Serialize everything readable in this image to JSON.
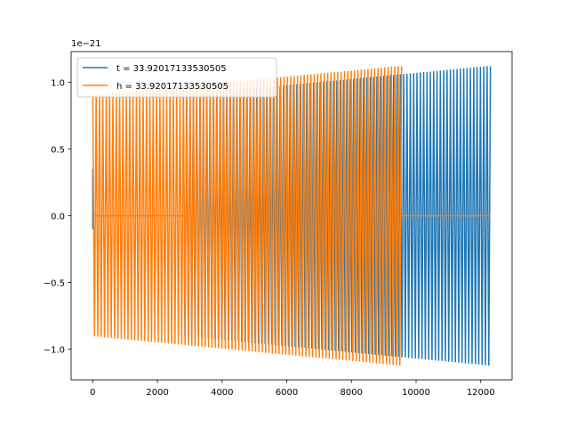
{
  "chart_data": {
    "type": "line",
    "title": "",
    "xlabel": "",
    "ylabel": "",
    "y_offset_label": "1e−21",
    "xlim": [
      -670,
      12970
    ],
    "ylim": [
      -1.23,
      1.23
    ],
    "x_ticks": [
      0,
      2000,
      4000,
      6000,
      8000,
      10000,
      12000
    ],
    "x_tick_labels": [
      "0",
      "2000",
      "4000",
      "6000",
      "8000",
      "10000",
      "12000"
    ],
    "y_ticks": [
      1.0,
      0.5,
      0.0,
      -0.5,
      -1.0
    ],
    "y_tick_labels": [
      "1.0",
      "0.5",
      "0.0",
      "−0.5",
      "−1.0"
    ],
    "grid": false,
    "legend_position": "top-left",
    "series": [
      {
        "name": "t = 33.92017133530505",
        "color": "#1f77b4",
        "segments": [
          {
            "x_start": 0,
            "x_end": 50,
            "amp_start": 0.35,
            "amp_end": 0.35,
            "cycles": 0,
            "offset": 0
          },
          {
            "x_start": 2800,
            "x_end": 12300,
            "amp_start": 0.9,
            "amp_end": 1.12,
            "cycles": 92,
            "offset": 0
          }
        ]
      },
      {
        "name": "h = 33.92017133530505",
        "color": "#ff7f0e",
        "segments": [
          {
            "x_start": 0,
            "x_end": 9550,
            "amp_start": 0.9,
            "amp_end": 1.12,
            "cycles": 92,
            "offset": 0
          },
          {
            "x_start": 0,
            "x_end": 2800,
            "amp_start": 0,
            "amp_end": 0,
            "cycles": 0,
            "offset": 0
          },
          {
            "x_start": 9550,
            "x_end": 12300,
            "amp_start": 0,
            "amp_end": 0,
            "cycles": 0,
            "offset": 0
          }
        ]
      }
    ]
  }
}
